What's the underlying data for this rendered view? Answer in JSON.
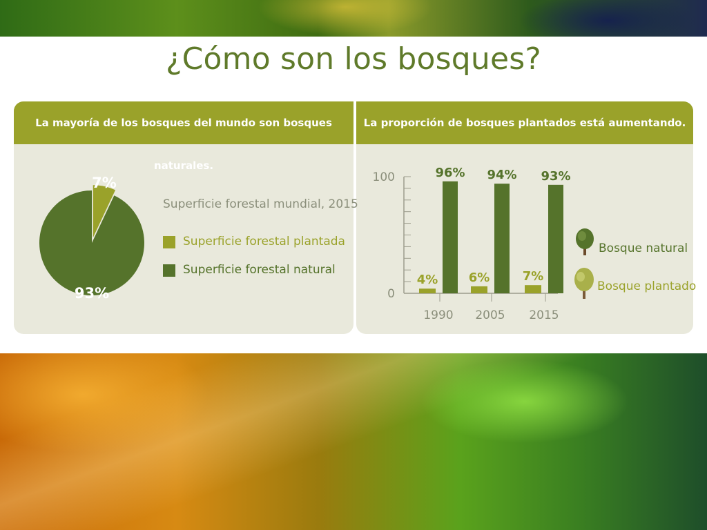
{
  "slide": {
    "title": "¿Cómo son los bosques?"
  },
  "left_panel": {
    "header": "La mayoría de los bosques del mundo son bosques naturales.",
    "pie_title": "Superficie forestal mundial, 2015",
    "legend": [
      {
        "label": "Superficie forestal plantada",
        "color": "#9aa22a"
      },
      {
        "label": "Superficie forestal natural",
        "color": "#55732b"
      }
    ]
  },
  "right_panel": {
    "header": "La proporción de bosques plantados está aumentando.",
    "legend": [
      {
        "label": "Bosque natural",
        "icon": "tree-natural-icon",
        "color": "#55732b"
      },
      {
        "label": "Bosque plantado",
        "icon": "tree-planted-icon",
        "color": "#9aa22a"
      }
    ]
  },
  "chart_data": [
    {
      "type": "pie",
      "title": "Superficie forestal mundial, 2015",
      "slices": [
        {
          "name": "Superficie forestal plantada",
          "value": 7,
          "label": "7%",
          "color": "#9aa22a"
        },
        {
          "name": "Superficie forestal natural",
          "value": 93,
          "label": "93%",
          "color": "#55732b"
        }
      ]
    },
    {
      "type": "bar",
      "categories": [
        "1990",
        "2005",
        "2015"
      ],
      "ylim": [
        0,
        100
      ],
      "yticks": [
        "0",
        "100"
      ],
      "series": [
        {
          "name": "Bosque plantado",
          "values": [
            4,
            6,
            7
          ],
          "labels": [
            "4%",
            "6%",
            "7%"
          ],
          "color": "#9aa22a"
        },
        {
          "name": "Bosque natural",
          "values": [
            96,
            94,
            93
          ],
          "labels": [
            "96%",
            "94%",
            "93%"
          ],
          "color": "#55732b"
        }
      ]
    }
  ]
}
